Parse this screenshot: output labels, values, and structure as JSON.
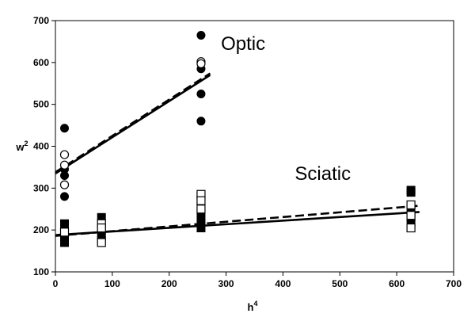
{
  "chart_data": {
    "type": "scatter",
    "title": "",
    "xlabel": {
      "base": "h",
      "sup": "4"
    },
    "ylabel": {
      "base": "w",
      "sup": "2"
    },
    "xlim": [
      0,
      700
    ],
    "ylim": [
      100,
      700
    ],
    "xticks": [
      0,
      100,
      200,
      300,
      400,
      500,
      600,
      700
    ],
    "yticks": [
      100,
      200,
      300,
      400,
      500,
      600,
      700
    ],
    "annotations": [
      {
        "text": "Optic",
        "x": 330,
        "y": 630
      },
      {
        "text": "Sciatic",
        "x": 470,
        "y": 320
      }
    ],
    "series": [
      {
        "marker": "circle-filled",
        "points": [
          [
            16,
            443
          ],
          [
            16,
            345
          ],
          [
            16,
            330
          ],
          [
            16,
            280
          ],
          [
            256,
            665
          ],
          [
            256,
            585
          ],
          [
            256,
            525
          ],
          [
            256,
            460
          ]
        ]
      },
      {
        "marker": "circle-open",
        "points": [
          [
            16,
            380
          ],
          [
            16,
            355
          ],
          [
            16,
            308
          ],
          [
            256,
            602
          ],
          [
            256,
            597
          ]
        ]
      },
      {
        "marker": "square-filled",
        "points": [
          [
            16,
            215
          ],
          [
            16,
            205
          ],
          [
            16,
            180
          ],
          [
            16,
            170
          ],
          [
            81,
            230
          ],
          [
            81,
            200
          ],
          [
            81,
            185
          ],
          [
            81,
            175
          ],
          [
            256,
            280
          ],
          [
            256,
            260
          ],
          [
            256,
            240
          ],
          [
            256,
            220
          ],
          [
            256,
            205
          ],
          [
            625,
            295
          ],
          [
            625,
            290
          ],
          [
            625,
            245
          ],
          [
            625,
            230
          ],
          [
            625,
            215
          ]
        ]
      },
      {
        "marker": "square-open",
        "points": [
          [
            16,
            195
          ],
          [
            81,
            215
          ],
          [
            81,
            205
          ],
          [
            81,
            170
          ],
          [
            256,
            285
          ],
          [
            256,
            270
          ],
          [
            256,
            250
          ],
          [
            625,
            260
          ],
          [
            625,
            235
          ],
          [
            625,
            205
          ]
        ]
      }
    ],
    "lines": [
      {
        "style": "solid",
        "from": [
          0,
          335
        ],
        "to": [
          272,
          570
        ]
      },
      {
        "style": "dashed",
        "from": [
          0,
          338
        ],
        "to": [
          272,
          574
        ]
      },
      {
        "style": "solid",
        "from": [
          0,
          188
        ],
        "to": [
          640,
          243
        ]
      },
      {
        "style": "dashed",
        "from": [
          0,
          186
        ],
        "to": [
          640,
          258
        ]
      }
    ]
  }
}
